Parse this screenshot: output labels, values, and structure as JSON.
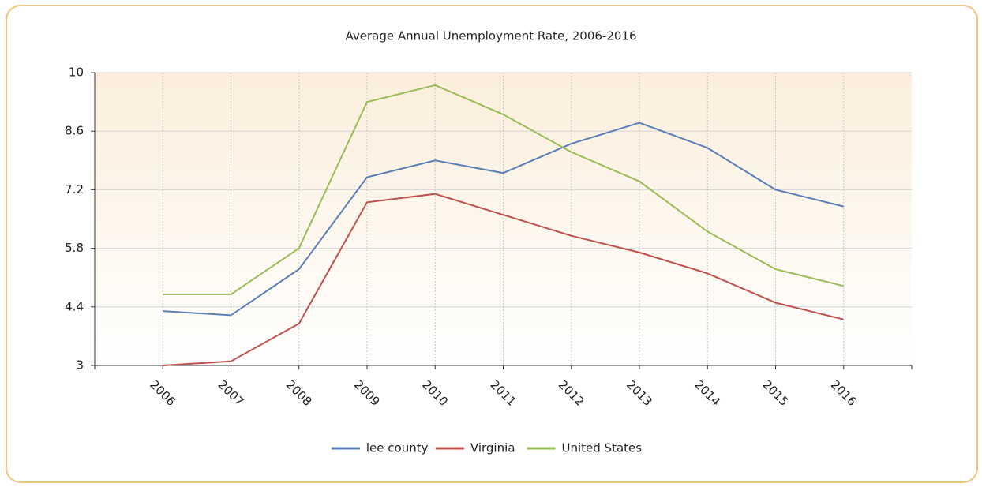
{
  "chart_data": {
    "type": "line",
    "title": "Average Annual Unemployment Rate, 2006-2016",
    "categories": [
      "2006",
      "2007",
      "2008",
      "2009",
      "2010",
      "2011",
      "2012",
      "2013",
      "2014",
      "2015",
      "2016"
    ],
    "series": [
      {
        "name": "lee county",
        "color": "#5b7fb7",
        "values": [
          4.3,
          4.2,
          5.3,
          7.5,
          7.9,
          7.6,
          8.3,
          8.8,
          8.2,
          7.2,
          6.8
        ]
      },
      {
        "name": "Virginia",
        "color": "#c0504d",
        "values": [
          3.0,
          3.1,
          4.0,
          6.9,
          7.1,
          6.6,
          6.1,
          5.7,
          5.2,
          4.5,
          4.1
        ]
      },
      {
        "name": "United States",
        "color": "#9bbb59",
        "values": [
          4.7,
          4.7,
          5.8,
          9.3,
          9.7,
          9.0,
          8.1,
          7.4,
          6.2,
          5.3,
          4.9
        ]
      }
    ],
    "ylim": [
      3,
      10
    ],
    "yticks": [
      3,
      4.4,
      5.8,
      7.2,
      8.6,
      10
    ],
    "grid": true,
    "legend": "bottom"
  }
}
